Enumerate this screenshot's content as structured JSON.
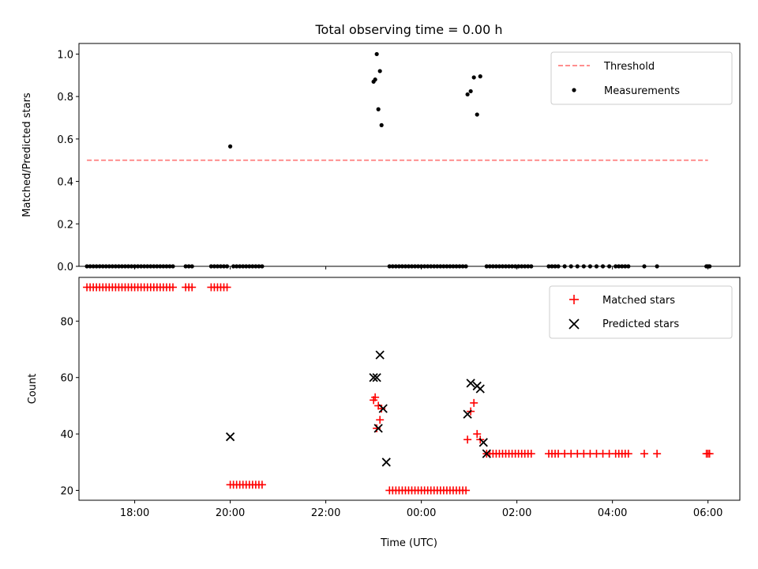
{
  "chart_data": [
    {
      "type": "scatter",
      "title": "Total observing time = 0.00 h",
      "xlabel": "",
      "ylabel": "Matched/Predicted stars",
      "xlim": [
        "16:50",
        "06:40"
      ],
      "ylim": [
        0,
        1.05
      ],
      "yticks": [
        "0.0",
        "0.2",
        "0.4",
        "0.6",
        "0.8",
        "1.0"
      ],
      "legend_position": "upper right",
      "colors": {
        "threshold": "#ff7f7f",
        "measurements": "#000000"
      },
      "series": [
        {
          "name": "Threshold",
          "kind": "dashed-line",
          "x": [
            "17:00",
            "06:00"
          ],
          "y": [
            0.5,
            0.5
          ]
        },
        {
          "name": "Measurements",
          "kind": "dots",
          "x": [
            "17:00",
            "17:04",
            "17:08",
            "17:12",
            "17:16",
            "17:20",
            "17:24",
            "17:28",
            "17:32",
            "17:36",
            "17:40",
            "17:44",
            "17:48",
            "17:52",
            "17:56",
            "18:00",
            "18:04",
            "18:08",
            "18:12",
            "18:16",
            "18:20",
            "18:24",
            "18:28",
            "18:32",
            "18:36",
            "18:40",
            "18:44",
            "18:48",
            "19:04",
            "19:08",
            "19:12",
            "19:36",
            "19:40",
            "19:44",
            "19:48",
            "19:52",
            "19:56",
            "20:00",
            "20:04",
            "20:08",
            "20:12",
            "20:16",
            "20:20",
            "20:24",
            "20:28",
            "20:32",
            "20:36",
            "20:40",
            "23:00",
            "23:02",
            "23:04",
            "23:06",
            "23:08",
            "23:10",
            "23:20",
            "23:24",
            "23:28",
            "23:32",
            "23:36",
            "23:40",
            "23:44",
            "23:48",
            "23:52",
            "23:56",
            "00:00",
            "00:04",
            "00:08",
            "00:12",
            "00:16",
            "00:20",
            "00:24",
            "00:28",
            "00:32",
            "00:36",
            "00:40",
            "00:44",
            "00:48",
            "00:52",
            "00:56",
            "00:58",
            "01:02",
            "01:06",
            "01:10",
            "01:14",
            "01:22",
            "01:26",
            "01:30",
            "01:34",
            "01:38",
            "01:42",
            "01:46",
            "01:50",
            "01:54",
            "01:58",
            "02:02",
            "02:06",
            "02:10",
            "02:14",
            "02:18",
            "02:40",
            "02:44",
            "02:48",
            "02:52",
            "03:00",
            "03:08",
            "03:16",
            "03:24",
            "03:32",
            "03:40",
            "03:48",
            "03:56",
            "04:04",
            "04:08",
            "04:12",
            "04:16",
            "04:20",
            "04:40",
            "04:56",
            "05:58",
            "06:00",
            "06:02"
          ],
          "y": [
            0,
            0,
            0,
            0,
            0,
            0,
            0,
            0,
            0,
            0,
            0,
            0,
            0,
            0,
            0,
            0,
            0,
            0,
            0,
            0,
            0,
            0,
            0,
            0,
            0,
            0,
            0,
            0,
            0,
            0,
            0,
            0,
            0,
            0,
            0,
            0,
            0,
            0.565,
            0,
            0,
            0,
            0,
            0,
            0,
            0,
            0,
            0,
            0,
            0.87,
            0.88,
            1.0,
            0.74,
            0.92,
            0.665,
            0,
            0,
            0,
            0,
            0,
            0,
            0,
            0,
            0,
            0,
            0,
            0,
            0,
            0,
            0,
            0,
            0,
            0,
            0,
            0,
            0,
            0,
            0,
            0,
            0,
            0.81,
            0.825,
            0.89,
            0.715,
            0.895,
            0,
            0,
            0,
            0,
            0,
            0,
            0,
            0,
            0,
            0,
            0,
            0,
            0,
            0,
            0,
            0,
            0,
            0,
            0,
            0,
            0,
            0,
            0,
            0,
            0,
            0,
            0,
            0,
            0,
            0,
            0,
            0,
            0,
            0,
            0,
            0,
            0
          ]
        }
      ]
    },
    {
      "type": "scatter",
      "title": "",
      "xlabel": "Time (UTC)",
      "ylabel": "Count",
      "xlim": [
        "16:50",
        "06:40"
      ],
      "ylim": [
        16.5,
        95.5
      ],
      "yticks": [
        "20",
        "40",
        "60",
        "80"
      ],
      "xticks": [
        "18:00",
        "20:00",
        "22:00",
        "00:00",
        "02:00",
        "04:00",
        "06:00"
      ],
      "legend_position": "upper right",
      "colors": {
        "matched": "#ff0000",
        "predicted": "#000000"
      },
      "series": [
        {
          "name": "Matched stars",
          "marker": "plus",
          "x": [
            "17:00",
            "17:04",
            "17:08",
            "17:12",
            "17:16",
            "17:20",
            "17:24",
            "17:28",
            "17:32",
            "17:36",
            "17:40",
            "17:44",
            "17:48",
            "17:52",
            "17:56",
            "18:00",
            "18:04",
            "18:08",
            "18:12",
            "18:16",
            "18:20",
            "18:24",
            "18:28",
            "18:32",
            "18:36",
            "18:40",
            "18:44",
            "18:48",
            "19:04",
            "19:08",
            "19:12",
            "19:36",
            "19:40",
            "19:44",
            "19:48",
            "19:52",
            "19:56",
            "20:00",
            "20:04",
            "20:08",
            "20:12",
            "20:16",
            "20:20",
            "20:24",
            "20:28",
            "20:32",
            "20:36",
            "20:40",
            "23:00",
            "23:02",
            "23:04",
            "23:06",
            "23:08",
            "23:10",
            "23:20",
            "23:24",
            "23:28",
            "23:32",
            "23:36",
            "23:40",
            "23:44",
            "23:48",
            "23:52",
            "23:56",
            "00:00",
            "00:04",
            "00:08",
            "00:12",
            "00:16",
            "00:20",
            "00:24",
            "00:28",
            "00:32",
            "00:36",
            "00:40",
            "00:44",
            "00:48",
            "00:52",
            "00:56",
            "00:58",
            "01:02",
            "01:06",
            "01:10",
            "01:14",
            "01:22",
            "01:26",
            "01:30",
            "01:34",
            "01:38",
            "01:42",
            "01:46",
            "01:50",
            "01:54",
            "01:58",
            "02:02",
            "02:06",
            "02:10",
            "02:14",
            "02:18",
            "02:40",
            "02:44",
            "02:48",
            "02:52",
            "03:00",
            "03:08",
            "03:16",
            "03:24",
            "03:32",
            "03:40",
            "03:48",
            "03:56",
            "04:04",
            "04:08",
            "04:12",
            "04:16",
            "04:20",
            "04:40",
            "04:56",
            "05:58",
            "06:00",
            "06:02"
          ],
          "y": [
            92,
            92,
            92,
            92,
            92,
            92,
            92,
            92,
            92,
            92,
            92,
            92,
            92,
            92,
            92,
            92,
            92,
            92,
            92,
            92,
            92,
            92,
            92,
            92,
            92,
            92,
            92,
            92,
            92,
            92,
            92,
            92,
            92,
            92,
            92,
            92,
            92,
            22,
            22,
            22,
            22,
            22,
            22,
            22,
            22,
            22,
            22,
            22,
            52,
            53,
            42,
            50,
            45,
            49,
            20,
            20,
            20,
            20,
            20,
            20,
            20,
            20,
            20,
            20,
            20,
            20,
            20,
            20,
            20,
            20,
            20,
            20,
            20,
            20,
            20,
            20,
            20,
            20,
            20,
            38,
            48,
            51,
            40,
            38,
            33,
            33,
            33,
            33,
            33,
            33,
            33,
            33,
            33,
            33,
            33,
            33,
            33,
            33,
            33,
            33,
            33,
            33,
            33,
            33,
            33,
            33,
            33,
            33,
            33,
            33,
            33,
            33,
            33,
            33,
            33,
            33,
            33,
            33,
            33,
            33,
            33
          ]
        },
        {
          "name": "Predicted stars",
          "marker": "x",
          "x": [
            "20:00",
            "23:00",
            "23:04",
            "23:06",
            "23:08",
            "23:12",
            "23:16",
            "00:58",
            "01:02",
            "01:10",
            "01:14",
            "01:18",
            "01:22"
          ],
          "y": [
            39,
            60,
            60,
            42,
            68,
            49,
            30,
            47,
            58,
            57,
            56,
            37,
            33
          ]
        }
      ]
    }
  ]
}
